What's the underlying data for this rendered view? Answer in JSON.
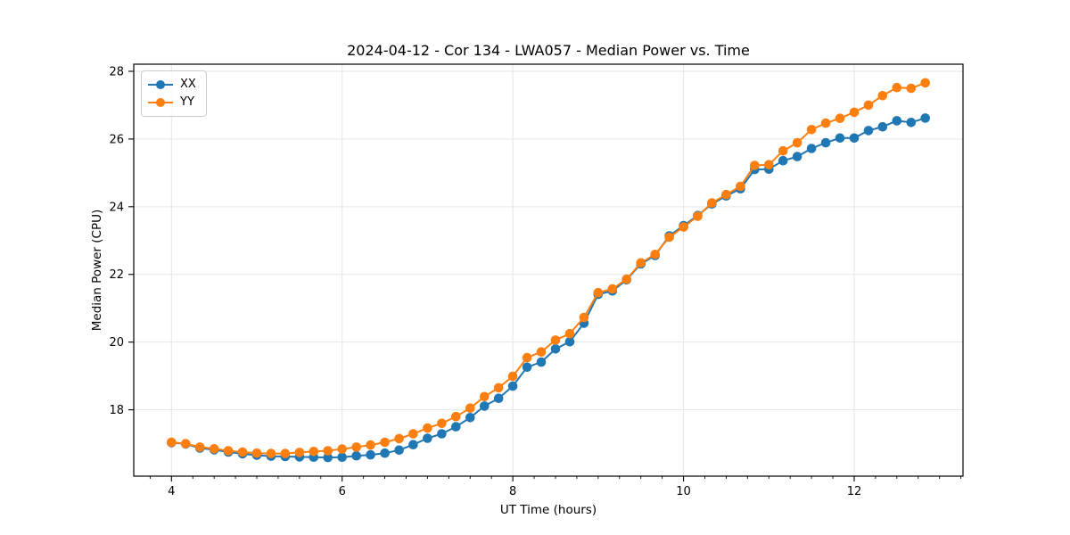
{
  "chart_data": {
    "type": "line",
    "title": "2024-04-12 - Cor 134 - LWA057 - Median Power vs. Time",
    "xlabel": "UT Time (hours)",
    "ylabel": "Median Power (CPU)",
    "legend_position": "upper left",
    "grid": true,
    "marker": "circle",
    "xlim": [
      3.558,
      13.275
    ],
    "ylim": [
      16.04,
      28.21
    ],
    "x_ticks": [
      4,
      6,
      8,
      10,
      12
    ],
    "x_minor_step": 0.25,
    "y_ticks": [
      18,
      20,
      22,
      24,
      26,
      28
    ],
    "x": [
      4.0,
      4.167,
      4.333,
      4.5,
      4.667,
      4.833,
      5.0,
      5.167,
      5.333,
      5.5,
      5.667,
      5.833,
      6.0,
      6.167,
      6.333,
      6.5,
      6.667,
      6.833,
      7.0,
      7.167,
      7.333,
      7.5,
      7.667,
      7.833,
      8.0,
      8.167,
      8.333,
      8.5,
      8.667,
      8.833,
      9.0,
      9.167,
      9.333,
      9.5,
      9.667,
      9.833,
      10.0,
      10.167,
      10.333,
      10.5,
      10.667,
      10.833,
      11.0,
      11.167,
      11.333,
      11.5,
      11.667,
      11.833,
      12.0,
      12.167,
      12.333,
      12.5,
      12.667,
      12.833
    ],
    "series": [
      {
        "name": "XX",
        "color": "#1f77b4",
        "values": [
          17.03,
          16.99,
          16.87,
          16.82,
          16.75,
          16.7,
          16.66,
          16.63,
          16.62,
          16.61,
          16.6,
          16.59,
          16.6,
          16.64,
          16.67,
          16.72,
          16.81,
          16.97,
          17.16,
          17.29,
          17.5,
          17.77,
          18.11,
          18.34,
          18.7,
          19.26,
          19.41,
          19.8,
          20.01,
          20.56,
          21.41,
          21.51,
          21.84,
          22.31,
          22.56,
          23.14,
          23.44,
          23.74,
          24.08,
          24.32,
          24.53,
          25.1,
          25.11,
          25.36,
          25.48,
          25.72,
          25.89,
          26.03,
          26.03,
          26.25,
          26.36,
          26.54,
          26.49,
          26.62
        ]
      },
      {
        "name": "YY",
        "color": "#ff7f0e",
        "values": [
          17.04,
          17.0,
          16.9,
          16.85,
          16.79,
          16.75,
          16.72,
          16.71,
          16.71,
          16.74,
          16.77,
          16.79,
          16.84,
          16.9,
          16.96,
          17.04,
          17.15,
          17.29,
          17.46,
          17.6,
          17.8,
          18.05,
          18.39,
          18.65,
          18.99,
          19.54,
          19.71,
          20.06,
          20.25,
          20.73,
          21.46,
          21.57,
          21.86,
          22.34,
          22.59,
          23.1,
          23.4,
          23.72,
          24.11,
          24.36,
          24.6,
          25.22,
          25.24,
          25.65,
          25.89,
          26.28,
          26.47,
          26.61,
          26.79,
          27.0,
          27.28,
          27.52,
          27.5,
          27.66
        ]
      }
    ]
  }
}
